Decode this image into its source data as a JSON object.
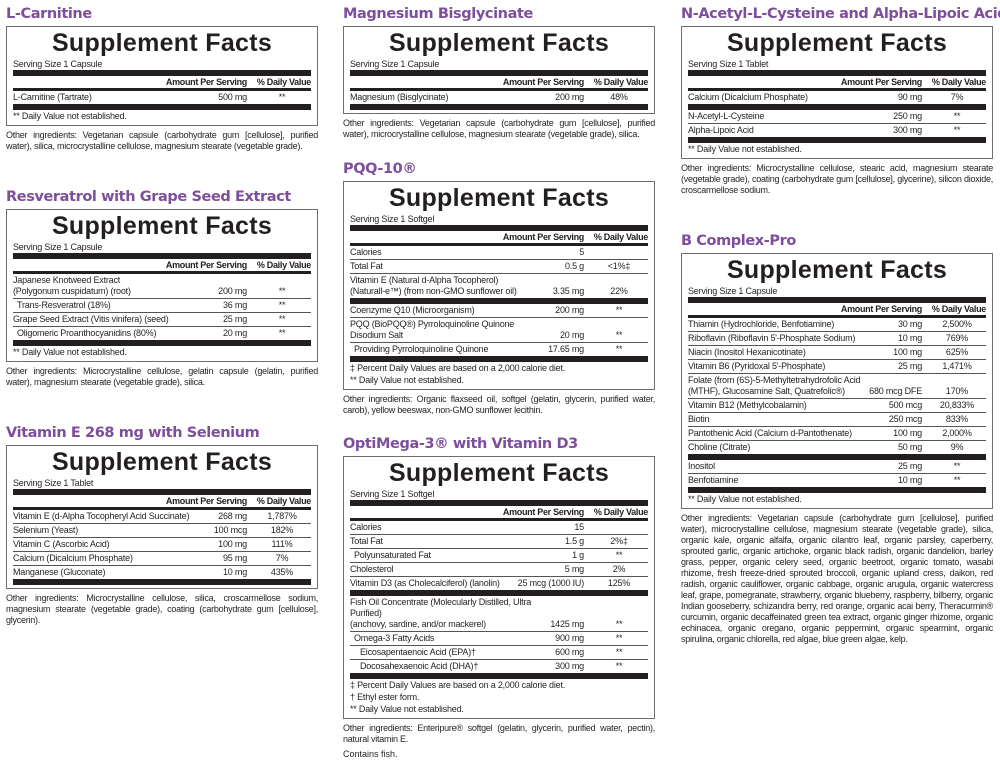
{
  "colors": {
    "title": "#7d4e9c",
    "text": "#231f20"
  },
  "common": {
    "panel_title": "Supplement Facts",
    "header_amount": "Amount Per Serving",
    "header_dv": "% Daily Value"
  },
  "products": [
    {
      "title": "L-Carnitine",
      "serving": "Serving Size 1 Capsule",
      "groups": [
        [
          {
            "name": "L-Carnitine (Tartrate)",
            "amount": "500 mg",
            "dv": "**"
          }
        ]
      ],
      "footnotes": [
        "** Daily Value not established."
      ],
      "other": "Other ingredients: Vegetarian capsule (carbohydrate gum [cellulose], purified water), silica, microcrystalline cellulose, magnesium stearate (vegetable grade)."
    },
    {
      "title": "Resveratrol with Grape Seed Extract",
      "serving": "Serving Size 1 Capsule",
      "groups": [
        [
          {
            "name": "Japanese Knotweed Extract\n (Polygonum cuspidatum) (root)",
            "amount": "200 mg",
            "dv": "**"
          },
          {
            "name": "Trans-Resveratrol (18%)",
            "amount": "36 mg",
            "dv": "**",
            "indent": 1
          },
          {
            "name": "Grape Seed Extract (Vitis vinifera) (seed)",
            "amount": "25 mg",
            "dv": "**"
          },
          {
            "name": "Oligomeric Proanthocyanidins (80%)",
            "amount": "20 mg",
            "dv": "**",
            "indent": 1
          }
        ]
      ],
      "footnotes": [
        "** Daily Value not established."
      ],
      "other": "Other ingredients: Microcrystalline cellulose, gelatin capsule (gelatin, purified water), magnesium stearate (vegetable grade), silica."
    },
    {
      "title": "Vitamin E 268 mg with Selenium",
      "serving": "Serving Size 1 Tablet",
      "groups": [
        [
          {
            "name": "Vitamin E (d-Alpha Tocopheryl Acid Succinate)",
            "amount": "268 mg",
            "dv": "1,787%"
          },
          {
            "name": "Selenium (Yeast)",
            "amount": "100 mcg",
            "dv": "182%"
          },
          {
            "name": "Vitamin C (Ascorbic Acid)",
            "amount": "100 mg",
            "dv": "111%"
          },
          {
            "name": "Calcium (Dicalcium Phosphate)",
            "amount": "95 mg",
            "dv": "7%"
          },
          {
            "name": "Manganese (Gluconate)",
            "amount": "10 mg",
            "dv": "435%"
          }
        ]
      ],
      "footnotes": [],
      "other": "Other ingredients: Microcrystalline cellulose, silica, croscarmellose sodium, magnesium stearate (vegetable grade), coating (carbohydrate gum [cellulose], glycerin)."
    },
    {
      "title": "Magnesium Bisglycinate",
      "serving": "Serving Size 1 Capsule",
      "groups": [
        [
          {
            "name": "Magnesium (Bisglycinate)",
            "amount": "200 mg",
            "dv": "48%"
          }
        ]
      ],
      "footnotes": [],
      "other": "Other ingredients: Vegetarian capsule (carbohydrate gum [cellulose], purified water), microcrystalline cellulose, magnesium stearate (vegetable grade), silica."
    },
    {
      "title": "PQQ-10®",
      "serving": "Serving Size 1 Softgel",
      "groups": [
        [
          {
            "name": "Calories",
            "amount": "5",
            "dv": ""
          },
          {
            "name": "Total Fat",
            "amount": "0.5 g",
            "dv": "<1%‡"
          },
          {
            "name": "Vitamin E (Natural d-Alpha Tocopherol)\n (Naturall-e™) (from non-GMO sunflower oil)",
            "amount": "3.35 mg",
            "dv": "22%"
          }
        ],
        [
          {
            "name": "Coenzyme Q10 (Microorganism)",
            "amount": "200 mg",
            "dv": "**"
          },
          {
            "name": "PQQ (BioPQQ®) Pyrroloquinoline Quinone\n Disodium Salt",
            "amount": "20 mg",
            "dv": "**"
          },
          {
            "name": "Providing Pyrroloquinoline Quinone",
            "amount": "17.65 mg",
            "dv": "**",
            "indent": 1
          }
        ]
      ],
      "footnotes": [
        "‡  Percent Daily Values are based on a 2,000 calorie diet.",
        "** Daily Value not established."
      ],
      "other": "Other ingredients: Organic flaxseed oil, softgel (gelatin, glycerin, purified water, carob), yellow beeswax, non-GMO sunflower lecithin."
    },
    {
      "title": "OptiMega-3® with Vitamin D3",
      "serving": "Serving Size 1 Softgel",
      "groups": [
        [
          {
            "name": "Calories",
            "amount": "15",
            "dv": ""
          },
          {
            "name": "Total Fat",
            "amount": "1.5 g",
            "dv": "2%‡"
          },
          {
            "name": "Polyunsaturated Fat",
            "amount": "1 g",
            "dv": "**",
            "indent": 1
          },
          {
            "name": "Cholesterol",
            "amount": "5 mg",
            "dv": "2%"
          },
          {
            "name": "Vitamin D3 (as Cholecalciferol) (lanolin)",
            "amount": "25 mcg (1000 IU)",
            "dv": "125%"
          }
        ],
        [
          {
            "name": "Fish Oil Concentrate (Molecularly Distilled, Ultra Purified)\n (anchovy, sardine, and/or mackerel)",
            "amount": "1425 mg",
            "dv": "**"
          },
          {
            "name": "Omega-3 Fatty Acids",
            "amount": "900 mg",
            "dv": "**",
            "indent": 1
          },
          {
            "name": "Eicosapentaenoic Acid (EPA)†",
            "amount": "600 mg",
            "dv": "**",
            "indent": 2
          },
          {
            "name": "Docosahexaenoic Acid (DHA)†",
            "amount": "300 mg",
            "dv": "**",
            "indent": 2
          }
        ]
      ],
      "footnotes": [
        "‡  Percent Daily Values are based on a 2,000 calorie diet.",
        "†  Ethyl ester form.",
        "** Daily Value not established."
      ],
      "other": "Other ingredients: Enteripure® softgel (gelatin, glycerin, purified water, pectin), natural vitamin E.",
      "extra": "Contains fish."
    },
    {
      "title": "N-Acetyl-L-Cysteine and Alpha-Lipoic Acid",
      "serving": "Serving Size 1 Tablet",
      "groups": [
        [
          {
            "name": "Calcium (Dicalcium Phosphate)",
            "amount": "90 mg",
            "dv": "7%"
          }
        ],
        [
          {
            "name": "N-Acetyl-L-Cysteine",
            "amount": "250 mg",
            "dv": "**"
          },
          {
            "name": "Alpha-Lipoic Acid",
            "amount": "300 mg",
            "dv": "**"
          }
        ]
      ],
      "footnotes": [
        "** Daily Value not established."
      ],
      "other": "Other ingredients: Microcrystalline cellulose, stearic acid, magnesium stearate (vegetable grade), coating (carbohydrate gum [cellulose], glycerine), silicon dioxide, croscarmellose sodium."
    },
    {
      "title": "B Complex-Pro",
      "serving": "Serving Size 1 Capsule",
      "groups": [
        [
          {
            "name": "Thiamin (Hydrochloride, Benfotiamine)",
            "amount": "30 mg",
            "dv": "2,500%"
          },
          {
            "name": "Riboflavin (Riboflavin 5'-Phosphate Sodium)",
            "amount": "10 mg",
            "dv": "769%"
          },
          {
            "name": "Niacin (Inositol Hexanicotinate)",
            "amount": "100 mg",
            "dv": "625%"
          },
          {
            "name": "Vitamin B6 (Pyridoxal 5'-Phosphate)",
            "amount": "25 mg",
            "dv": "1,471%"
          },
          {
            "name": "Folate (from (6S)-5-Methyltetrahydrofolic Acid\n (MTHF), Glucosamine Salt, Quatrefolic®)",
            "amount": "680 mcg DFE",
            "dv": "170%"
          },
          {
            "name": "Vitamin B12 (Methylcobalamin)",
            "amount": "500 mcg",
            "dv": "20,833%"
          },
          {
            "name": "Biotin",
            "amount": "250 mcg",
            "dv": "833%"
          },
          {
            "name": "Pantothenic Acid (Calcium d-Pantothenate)",
            "amount": "100 mg",
            "dv": "2,000%"
          },
          {
            "name": "Choline (Citrate)",
            "amount": "50 mg",
            "dv": "9%"
          }
        ],
        [
          {
            "name": "Inositol",
            "amount": "25 mg",
            "dv": "**"
          },
          {
            "name": "Benfotiamine",
            "amount": "10 mg",
            "dv": "**"
          }
        ]
      ],
      "footnotes": [
        "** Daily Value not established."
      ],
      "other": "Other ingredients: Vegetarian capsule (carbohydrate gum [cellulose], purified water), microcrystalline cellulose, magnesium stearate (vegetable grade), silica, organic kale, organic alfalfa, organic cilantro leaf, organic parsley, caperberry, sprouted garlic, organic artichoke, organic black radish, organic dandelion, barley grass, pepper, organic celery seed, organic beetroot, organic tomato, wasabi rhizome, fresh freeze-dried sprouted broccoli, organic upland cress, daikon, red radish, organic cauliflower, organic cabbage, organic arugula, organic watercress leaf, grape, pomegranate, strawberry, organic blueberry, raspberry, bilberry, organic Indian gooseberry, schizandra berry, red orange, organic acai berry, Theracurmin® curcumin, organic decaffeinated green tea extract, organic ginger rhizome, organic echinacea, organic oregano, organic peppermint, organic spearmint, organic spirulina, organic chlorella, red algae, blue green algae, kelp."
    }
  ]
}
